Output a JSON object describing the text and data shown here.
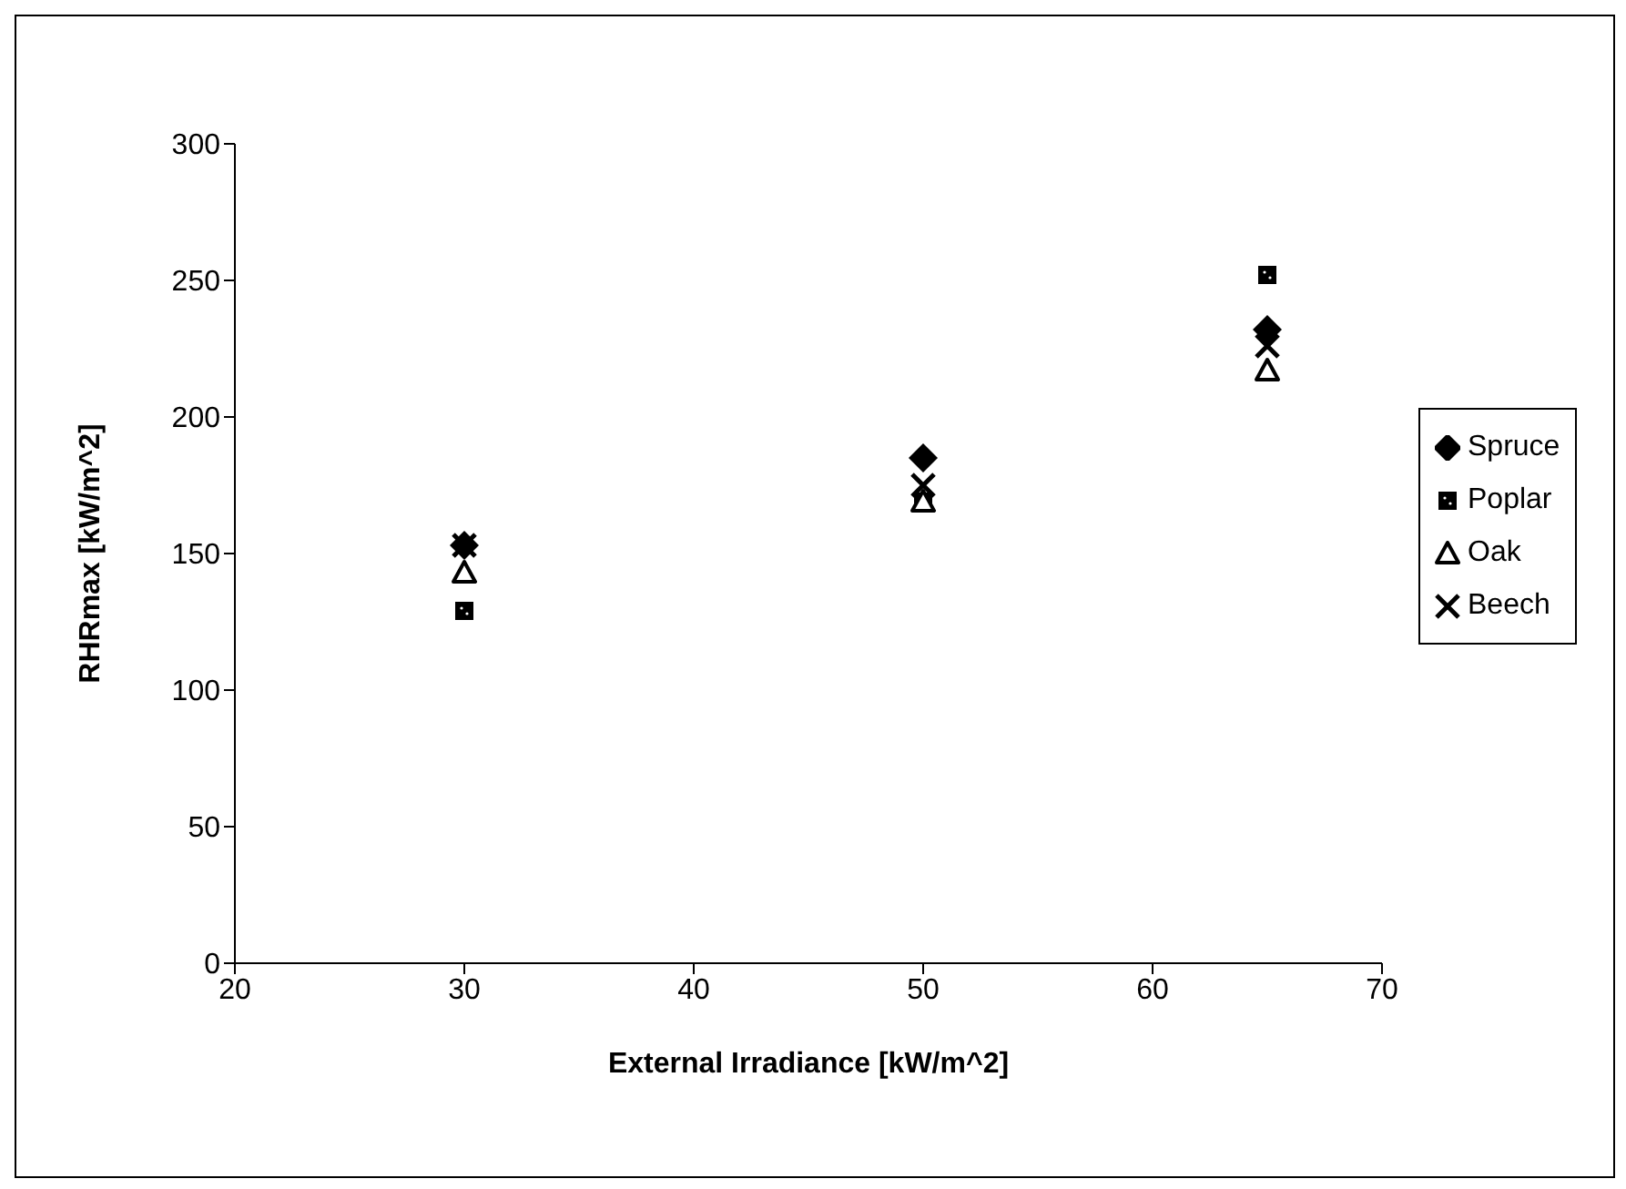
{
  "chart_data": {
    "type": "scatter",
    "xlabel": "External Irradiance [kW/m^2]",
    "ylabel": "RHRmax [kW/m^2]",
    "x": [
      30,
      50,
      65
    ],
    "series": [
      {
        "name": "Spruce",
        "color": "#000000",
        "marker": "diamond",
        "values": [
          153,
          185,
          232
        ]
      },
      {
        "name": "Poplar",
        "color": "#000000",
        "marker": "square",
        "values": [
          129,
          169,
          252
        ]
      },
      {
        "name": "Oak",
        "color": "#000000",
        "marker": "triangle",
        "values": [
          143,
          169,
          217
        ]
      },
      {
        "name": "Beech",
        "color": "#000000",
        "marker": "cross",
        "values": [
          153,
          175,
          226
        ]
      }
    ],
    "xlim": [
      20,
      70
    ],
    "xticks": [
      20,
      30,
      40,
      50,
      60,
      70
    ],
    "ylim": [
      0,
      300
    ],
    "yticks": [
      0,
      50,
      100,
      150,
      200,
      250,
      300
    ],
    "grid": false,
    "legend": "right"
  }
}
